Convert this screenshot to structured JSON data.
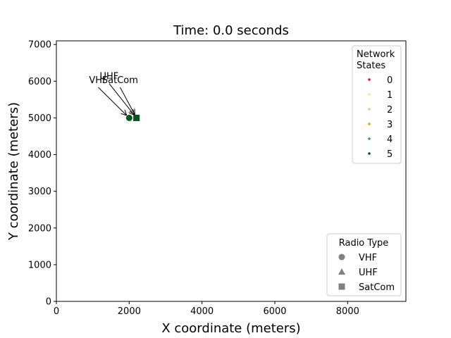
{
  "chart_data": {
    "type": "scatter",
    "title": "Time: 0.0 seconds",
    "xlabel": "X coordinate (meters)",
    "ylabel": "Y coordinate (meters)",
    "xlim": [
      0,
      9600
    ],
    "ylim": [
      0,
      7100
    ],
    "xticks": [
      0,
      2000,
      4000,
      6000,
      8000
    ],
    "yticks": [
      0,
      1000,
      2000,
      3000,
      4000,
      5000,
      6000,
      7000
    ],
    "points": [
      {
        "label": "VHF",
        "radio_type": "VHF",
        "x": 2000,
        "y": 5000,
        "state": 5,
        "color": "#00561b",
        "text_x": 1150,
        "text_y": 5950
      },
      {
        "label": "UHF",
        "radio_type": "UHF",
        "x": 2200,
        "y": 5000,
        "state": 5,
        "color": "#00561b",
        "text_x": 1450,
        "text_y": 6050
      },
      {
        "label": "SatCom",
        "radio_type": "SatCom",
        "x": 2200,
        "y": 5000,
        "state": 5,
        "color": "#00561b",
        "text_x": 1750,
        "text_y": 5950
      }
    ],
    "legend_states": {
      "title_lines": [
        "Network",
        "States"
      ],
      "entries": [
        {
          "label": "0",
          "color": "#d7191c"
        },
        {
          "label": "1",
          "color": "#ffe680"
        },
        {
          "label": "2",
          "color": "#fdbf6f"
        },
        {
          "label": "3",
          "color": "#e6a100"
        },
        {
          "label": "4",
          "color": "#2ca25f"
        },
        {
          "label": "5",
          "color": "#00561b"
        }
      ]
    },
    "legend_radio": {
      "title": "Radio Type",
      "entries": [
        {
          "label": "VHF",
          "marker": "circle"
        },
        {
          "label": "UHF",
          "marker": "triangle"
        },
        {
          "label": "SatCom",
          "marker": "square"
        }
      ],
      "marker_color": "#808080"
    }
  }
}
